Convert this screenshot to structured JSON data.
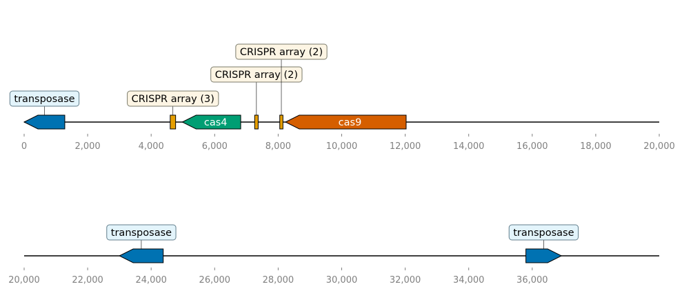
{
  "tracks": [
    {
      "start": 0,
      "end": 20000,
      "ticks": [
        "0",
        "2,000",
        "4,000",
        "6,000",
        "8,000",
        "10,000",
        "12,000",
        "14,000",
        "16,000",
        "18,000",
        "20,000"
      ],
      "tick_values": [
        0,
        2000,
        4000,
        6000,
        8000,
        10000,
        12000,
        14000,
        16000,
        18000,
        20000
      ],
      "features": [
        {
          "id": "transposase-1",
          "start": 0,
          "end": 1280,
          "strand": -1,
          "color": "#0072b2",
          "annotation": "transposase",
          "ann_style": "blue"
        },
        {
          "id": "crispr-array-1",
          "start": 4600,
          "end": 4770,
          "strand": 0,
          "color": "#e69f00",
          "annotation": "CRISPR array (3)",
          "ann_style": "tan"
        },
        {
          "id": "cas4",
          "start": 4980,
          "end": 6820,
          "strand": -1,
          "color": "#009e73",
          "label": "cas4"
        },
        {
          "id": "crispr-array-2",
          "start": 7260,
          "end": 7370,
          "strand": 0,
          "color": "#e69f00",
          "annotation": "CRISPR array (2)",
          "ann_style": "tan"
        },
        {
          "id": "crispr-array-3",
          "start": 8050,
          "end": 8150,
          "strand": 0,
          "color": "#e69f00",
          "annotation": "CRISPR array (2)",
          "ann_style": "tan"
        },
        {
          "id": "cas9",
          "start": 8230,
          "end": 12030,
          "strand": -1,
          "color": "#d55e00",
          "label": "cas9"
        }
      ]
    },
    {
      "start": 20000,
      "end": 40000,
      "ticks": [
        "20,000",
        "22,000",
        "24,000",
        "26,000",
        "28,000",
        "30,000",
        "32,000",
        "34,000",
        "36,000"
      ],
      "tick_values": [
        20000,
        22000,
        24000,
        26000,
        28000,
        30000,
        32000,
        34000,
        36000
      ],
      "features": [
        {
          "id": "transposase-2",
          "start": 23000,
          "end": 24380,
          "strand": -1,
          "color": "#0072b2",
          "annotation": "transposase",
          "ann_style": "blue"
        },
        {
          "id": "transposase-3",
          "start": 35800,
          "end": 36920,
          "strand": 1,
          "color": "#0072b2",
          "annotation": "transposase",
          "ann_style": "blue"
        }
      ]
    }
  ],
  "annotation_styles": {
    "blue": {
      "fill": "#e3f4fb",
      "stroke": "#607d8b"
    },
    "tan": {
      "fill": "#fdf5e4",
      "stroke": "#7a7a6a"
    }
  }
}
